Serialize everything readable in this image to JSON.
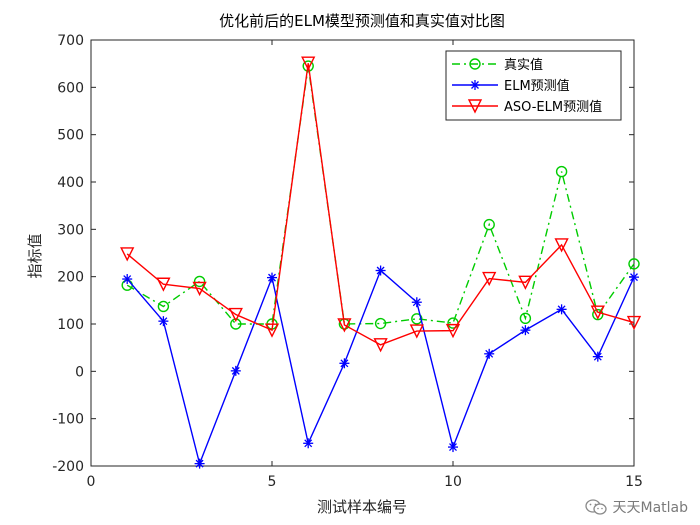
{
  "chart_data": {
    "type": "line",
    "title": "优化前后的ELM模型预测值和真实值对比图",
    "xlabel": "测试样本编号",
    "ylabel": "指标值",
    "xlim": [
      0,
      15
    ],
    "ylim": [
      -200,
      700
    ],
    "xticks": [
      0,
      5,
      10,
      15
    ],
    "yticks": [
      -200,
      -100,
      0,
      100,
      200,
      300,
      400,
      500,
      600,
      700
    ],
    "grid": false,
    "legend_position": "top-right",
    "x": [
      1,
      2,
      3,
      4,
      5,
      6,
      7,
      8,
      9,
      10,
      11,
      12,
      13,
      14,
      15
    ],
    "series": [
      {
        "name": "真实值",
        "color": "#00cc00",
        "marker": "circle",
        "line": "dash-dot",
        "values": [
          182,
          137,
          190,
          100,
          100,
          645,
          100,
          101,
          111,
          102,
          310,
          112,
          422,
          120,
          227
        ]
      },
      {
        "name": "ELM预测值",
        "color": "#0000ff",
        "marker": "asterisk",
        "line": "solid",
        "values": [
          195,
          106,
          -195,
          1,
          198,
          -152,
          17,
          213,
          146,
          -160,
          37,
          87,
          131,
          31,
          199
        ]
      },
      {
        "name": "ASO-ELM预测值",
        "color": "#ff0000",
        "marker": "triangle-down",
        "line": "solid",
        "values": [
          248,
          184,
          175,
          120,
          87,
          651,
          98,
          56,
          85,
          86,
          196,
          188,
          267,
          125,
          103
        ]
      }
    ]
  },
  "watermark": {
    "text": "天天Matlab",
    "icon": "wechat-icon"
  }
}
